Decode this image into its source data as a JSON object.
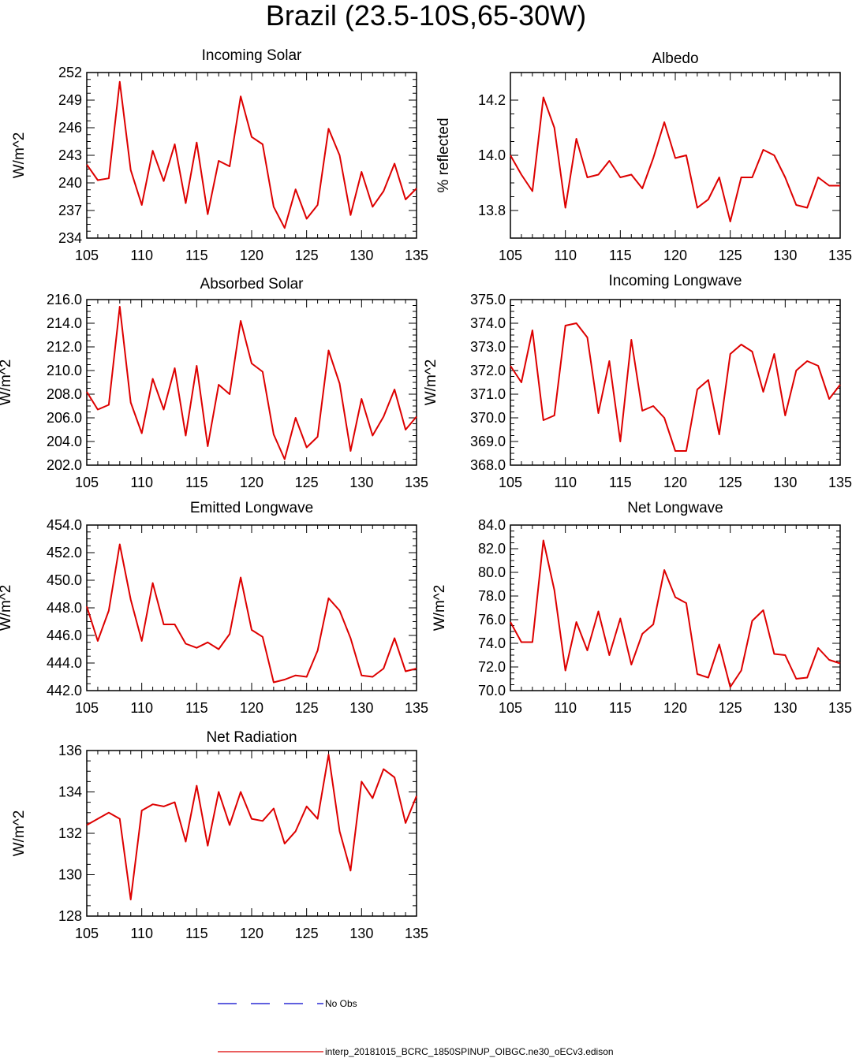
{
  "page": {
    "title": "Brazil (23.5-10S,65-30W)"
  },
  "legend": [
    {
      "label": "No Obs",
      "color": "#0000cc",
      "style": "dashed"
    },
    {
      "label": "interp_20181015_BCRC_1850SPINUP_OIBGC.ne30_oECv3.edison",
      "color": "#dd0000",
      "style": "solid"
    }
  ],
  "chart_data": [
    {
      "type": "line",
      "title": "Incoming Solar",
      "xlabel": "",
      "ylabel": "W/m^2",
      "xlim": [
        105,
        135
      ],
      "ylim": [
        234,
        252
      ],
      "xticks": [
        105,
        110,
        115,
        120,
        125,
        130,
        135
      ],
      "yticks": [
        234,
        237,
        240,
        243,
        246,
        249,
        252
      ],
      "ytick_labels": [
        "234",
        "237",
        "240",
        "243",
        "246",
        "249",
        "252"
      ],
      "x": [
        105,
        106,
        107,
        108,
        109,
        110,
        111,
        112,
        113,
        114,
        115,
        116,
        117,
        118,
        119,
        120,
        121,
        122,
        123,
        124,
        125,
        126,
        127,
        128,
        129,
        130,
        131,
        132,
        133,
        134,
        135
      ],
      "series": [
        {
          "color": "#dd0000",
          "values": [
            242.0,
            240.3,
            240.5,
            251.0,
            241.4,
            237.6,
            243.5,
            240.2,
            244.2,
            237.8,
            244.4,
            236.6,
            242.4,
            241.8,
            249.4,
            245.0,
            244.2,
            237.4,
            235.1,
            239.3,
            236.1,
            237.6,
            245.9,
            243.0,
            236.5,
            241.2,
            237.4,
            239.1,
            242.1,
            238.2,
            239.4
          ]
        }
      ]
    },
    {
      "type": "line",
      "title": "Albedo",
      "xlabel": "",
      "ylabel": "% reflected",
      "xlim": [
        105,
        135
      ],
      "ylim": [
        13.7,
        14.3
      ],
      "xticks": [
        105,
        110,
        115,
        120,
        125,
        130,
        135
      ],
      "yticks": [
        13.8,
        14.0,
        14.2
      ],
      "ytick_labels": [
        "13.8",
        "14.0",
        "14.2"
      ],
      "x": [
        105,
        106,
        107,
        108,
        109,
        110,
        111,
        112,
        113,
        114,
        115,
        116,
        117,
        118,
        119,
        120,
        121,
        122,
        123,
        124,
        125,
        126,
        127,
        128,
        129,
        130,
        131,
        132,
        133,
        134,
        135
      ],
      "series": [
        {
          "color": "#dd0000",
          "values": [
            14.0,
            13.93,
            13.87,
            14.21,
            14.1,
            13.81,
            14.06,
            13.92,
            13.93,
            13.98,
            13.92,
            13.93,
            13.88,
            13.99,
            14.12,
            13.99,
            14.0,
            13.81,
            13.84,
            13.92,
            13.76,
            13.92,
            13.92,
            14.02,
            14.0,
            13.92,
            13.82,
            13.81,
            13.92,
            13.89,
            13.89
          ]
        }
      ]
    },
    {
      "type": "line",
      "title": "Absorbed Solar",
      "xlabel": "",
      "ylabel": "W/m^2",
      "xlim": [
        105,
        135
      ],
      "ylim": [
        202,
        216
      ],
      "xticks": [
        105,
        110,
        115,
        120,
        125,
        130,
        135
      ],
      "yticks": [
        202,
        204,
        206,
        208,
        210,
        212,
        214,
        216
      ],
      "ytick_labels": [
        "202.0",
        "204.0",
        "206.0",
        "208.0",
        "210.0",
        "212.0",
        "214.0",
        "216.0"
      ],
      "x": [
        105,
        106,
        107,
        108,
        109,
        110,
        111,
        112,
        113,
        114,
        115,
        116,
        117,
        118,
        119,
        120,
        121,
        122,
        123,
        124,
        125,
        126,
        127,
        128,
        129,
        130,
        131,
        132,
        133,
        134,
        135
      ],
      "series": [
        {
          "color": "#dd0000",
          "values": [
            208.2,
            206.7,
            207.1,
            215.4,
            207.3,
            204.7,
            209.3,
            206.7,
            210.2,
            204.5,
            210.4,
            203.6,
            208.8,
            208.0,
            214.2,
            210.6,
            209.9,
            204.6,
            202.5,
            206.0,
            203.5,
            204.4,
            211.7,
            208.9,
            203.2,
            207.6,
            204.5,
            206.1,
            208.4,
            205.0,
            206.1
          ]
        }
      ]
    },
    {
      "type": "line",
      "title": "Incoming Longwave",
      "xlabel": "",
      "ylabel": "W/m^2",
      "xlim": [
        105,
        135
      ],
      "ylim": [
        368,
        375
      ],
      "xticks": [
        105,
        110,
        115,
        120,
        125,
        130,
        135
      ],
      "yticks": [
        368,
        369,
        370,
        371,
        372,
        373,
        374,
        375
      ],
      "ytick_labels": [
        "368.0",
        "369.0",
        "370.0",
        "371.0",
        "372.0",
        "373.0",
        "374.0",
        "375.0"
      ],
      "x": [
        105,
        106,
        107,
        108,
        109,
        110,
        111,
        112,
        113,
        114,
        115,
        116,
        117,
        118,
        119,
        120,
        121,
        122,
        123,
        124,
        125,
        126,
        127,
        128,
        129,
        130,
        131,
        132,
        133,
        134,
        135
      ],
      "series": [
        {
          "color": "#dd0000",
          "values": [
            372.2,
            371.5,
            373.7,
            369.9,
            370.1,
            373.9,
            374.0,
            373.4,
            370.2,
            372.4,
            369.0,
            373.3,
            370.3,
            370.5,
            370.0,
            368.6,
            368.6,
            371.2,
            371.6,
            369.3,
            372.7,
            373.1,
            372.8,
            371.1,
            372.7,
            370.1,
            372.0,
            372.4,
            372.2,
            370.8,
            371.4
          ]
        }
      ]
    },
    {
      "type": "line",
      "title": "Emitted Longwave",
      "xlabel": "",
      "ylabel": "W/m^2",
      "xlim": [
        105,
        135
      ],
      "ylim": [
        442,
        454
      ],
      "xticks": [
        105,
        110,
        115,
        120,
        125,
        130,
        135
      ],
      "yticks": [
        442,
        444,
        446,
        448,
        450,
        452,
        454
      ],
      "ytick_labels": [
        "442.0",
        "444.0",
        "446.0",
        "448.0",
        "450.0",
        "452.0",
        "454.0"
      ],
      "x": [
        105,
        106,
        107,
        108,
        109,
        110,
        111,
        112,
        113,
        114,
        115,
        116,
        117,
        118,
        119,
        120,
        121,
        122,
        123,
        124,
        125,
        126,
        127,
        128,
        129,
        130,
        131,
        132,
        133,
        134,
        135
      ],
      "series": [
        {
          "color": "#dd0000",
          "values": [
            448.1,
            445.6,
            447.8,
            452.6,
            448.6,
            445.6,
            449.8,
            446.8,
            446.8,
            445.4,
            445.1,
            445.5,
            445.0,
            446.1,
            450.2,
            446.4,
            445.9,
            442.6,
            442.8,
            443.1,
            443.0,
            444.9,
            448.7,
            447.8,
            445.8,
            443.1,
            443.0,
            443.6,
            445.8,
            443.4,
            443.6
          ]
        }
      ]
    },
    {
      "type": "line",
      "title": "Net Longwave",
      "xlabel": "",
      "ylabel": "W/m^2",
      "xlim": [
        105,
        135
      ],
      "ylim": [
        70,
        84
      ],
      "xticks": [
        105,
        110,
        115,
        120,
        125,
        130,
        135
      ],
      "yticks": [
        70,
        72,
        74,
        76,
        78,
        80,
        82,
        84
      ],
      "ytick_labels": [
        "70.0",
        "72.0",
        "74.0",
        "76.0",
        "78.0",
        "80.0",
        "82.0",
        "84.0"
      ],
      "x": [
        105,
        106,
        107,
        108,
        109,
        110,
        111,
        112,
        113,
        114,
        115,
        116,
        117,
        118,
        119,
        120,
        121,
        122,
        123,
        124,
        125,
        126,
        127,
        128,
        129,
        130,
        131,
        132,
        133,
        134,
        135
      ],
      "series": [
        {
          "color": "#dd0000",
          "values": [
            75.8,
            74.1,
            74.1,
            82.7,
            78.5,
            71.7,
            75.8,
            73.4,
            76.7,
            73.0,
            76.1,
            72.2,
            74.8,
            75.6,
            80.2,
            77.9,
            77.4,
            71.4,
            71.1,
            73.9,
            70.3,
            71.7,
            75.9,
            76.8,
            73.1,
            73.0,
            71.0,
            71.1,
            73.6,
            72.6,
            72.3
          ]
        }
      ]
    },
    {
      "type": "line",
      "title": "Net Radiation",
      "xlabel": "",
      "ylabel": "W/m^2",
      "xlim": [
        105,
        135
      ],
      "ylim": [
        128,
        136
      ],
      "xticks": [
        105,
        110,
        115,
        120,
        125,
        130,
        135
      ],
      "yticks": [
        128,
        130,
        132,
        134,
        136
      ],
      "ytick_labels": [
        "128",
        "130",
        "132",
        "134",
        "136"
      ],
      "x": [
        105,
        106,
        107,
        108,
        109,
        110,
        111,
        112,
        113,
        114,
        115,
        116,
        117,
        118,
        119,
        120,
        121,
        122,
        123,
        124,
        125,
        126,
        127,
        128,
        129,
        130,
        131,
        132,
        133,
        134,
        135
      ],
      "series": [
        {
          "color": "#dd0000",
          "values": [
            132.4,
            132.7,
            133.0,
            132.7,
            128.8,
            133.1,
            133.4,
            133.3,
            133.5,
            131.6,
            134.3,
            131.4,
            134.0,
            132.4,
            134.0,
            132.7,
            132.6,
            133.2,
            131.5,
            132.1,
            133.3,
            132.7,
            135.8,
            132.1,
            130.2,
            134.5,
            133.7,
            135.1,
            134.7,
            132.5,
            133.8
          ]
        }
      ]
    }
  ]
}
